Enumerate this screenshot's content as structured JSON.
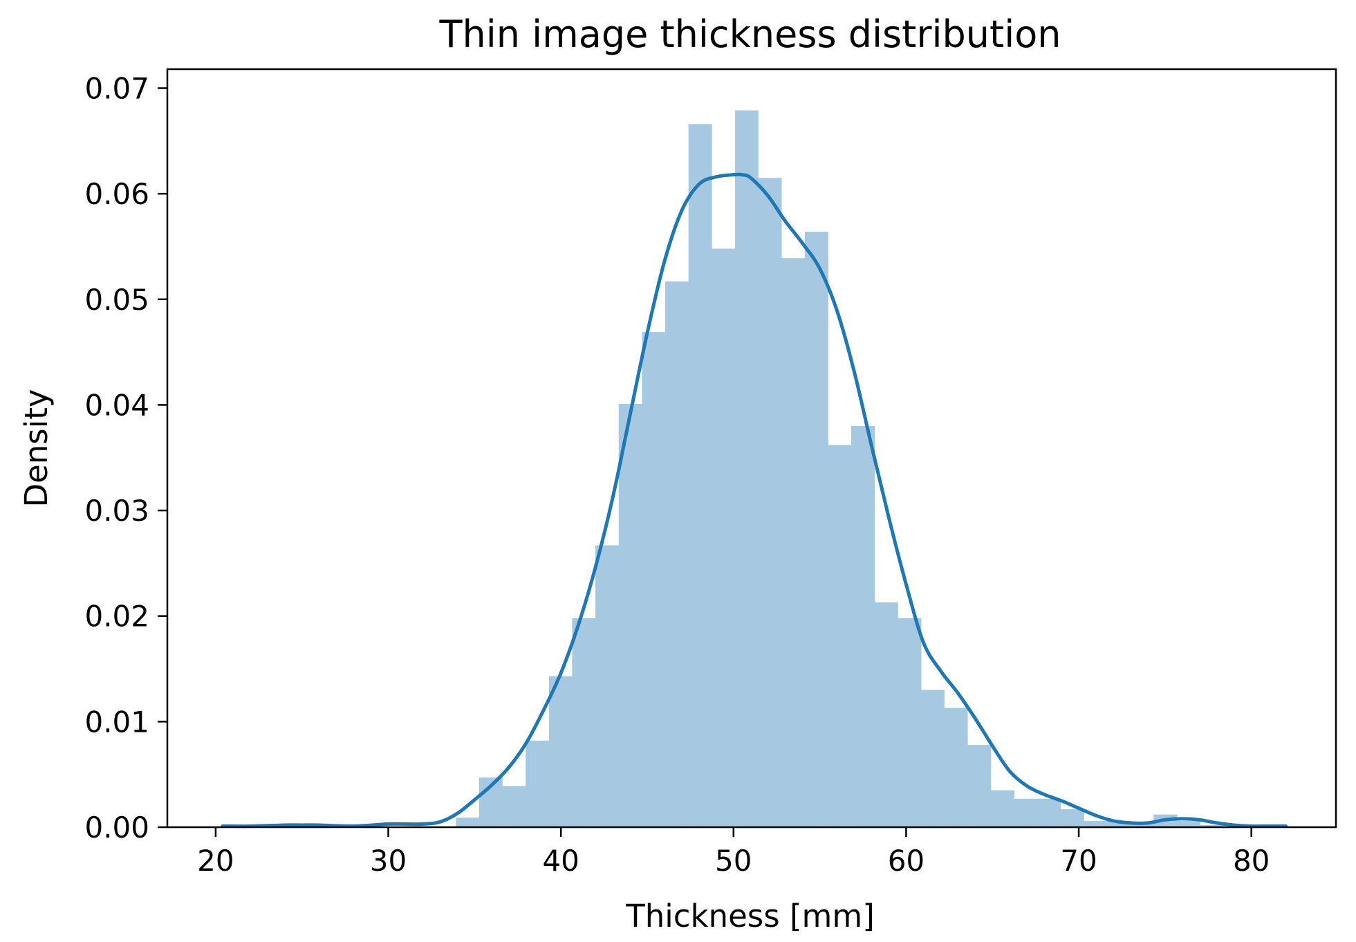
{
  "chart_data": {
    "type": "bar",
    "title": "Thin image thickness distribution",
    "xlabel": "Thickness [mm]",
    "ylabel": "Density",
    "xlim": [
      17.2,
      84.9
    ],
    "ylim": [
      0,
      0.0718
    ],
    "xticks": [
      20,
      30,
      40,
      50,
      60,
      70,
      80
    ],
    "xtick_labels": [
      "20",
      "30",
      "40",
      "50",
      "60",
      "70",
      "80"
    ],
    "yticks": [
      0.0,
      0.01,
      0.02,
      0.03,
      0.04,
      0.05,
      0.06,
      0.07
    ],
    "ytick_labels": [
      "0.00",
      "0.01",
      "0.02",
      "0.03",
      "0.04",
      "0.05",
      "0.06",
      "0.07"
    ],
    "grid": false,
    "legend": "none",
    "colors": {
      "histogram": "#a6c8e1",
      "kde": "#1f77b4"
    },
    "histogram": {
      "bin_edges": [
        20.44,
        21.79,
        23.14,
        24.48,
        25.83,
        27.18,
        28.53,
        29.87,
        31.22,
        32.57,
        33.92,
        35.26,
        36.61,
        37.96,
        39.31,
        40.65,
        42.0,
        43.35,
        44.7,
        46.04,
        47.39,
        48.74,
        50.09,
        51.43,
        52.78,
        54.13,
        55.48,
        56.82,
        58.17,
        59.52,
        60.87,
        62.21,
        63.56,
        64.91,
        66.26,
        67.6,
        68.95,
        70.3,
        71.65,
        72.99,
        74.34,
        75.69,
        77.04,
        78.38,
        79.73,
        81.08
      ],
      "values": [
        0.0002,
        0,
        0,
        0,
        0,
        0,
        0,
        0,
        0,
        0,
        0.0009,
        0.0047,
        0.0039,
        0.0082,
        0.0143,
        0.0198,
        0.0267,
        0.0401,
        0.0469,
        0.0517,
        0.0666,
        0.0548,
        0.0679,
        0.0615,
        0.0539,
        0.0564,
        0.0362,
        0.038,
        0.0213,
        0.0198,
        0.013,
        0.0113,
        0.0078,
        0.0035,
        0.0027,
        0.0027,
        0.0017,
        0.0006,
        0.0006,
        0.0003,
        0.0012,
        0.0006,
        0.0002,
        0,
        0.0002
      ]
    },
    "kde": {
      "x": [
        20.4,
        22,
        24,
        25,
        26,
        28,
        30,
        31,
        32,
        33,
        34,
        35,
        36,
        37,
        38,
        39,
        40,
        41,
        42,
        43,
        44,
        45,
        46,
        47,
        48,
        49,
        50,
        50.5,
        51,
        52,
        53,
        54,
        55,
        56,
        57,
        58,
        59,
        60,
        61,
        62,
        63,
        64,
        65,
        66,
        67,
        68,
        69,
        70,
        71,
        72,
        73,
        74,
        75,
        76,
        77,
        78,
        79,
        80,
        81,
        82
      ],
      "y": [
        0.0001,
        0.0001,
        0.0002,
        0.0002,
        0.0002,
        0.0001,
        0.0003,
        0.0003,
        0.0003,
        0.0005,
        0.0013,
        0.0026,
        0.004,
        0.0057,
        0.008,
        0.0111,
        0.0146,
        0.0191,
        0.0246,
        0.0312,
        0.039,
        0.0468,
        0.0536,
        0.0584,
        0.0609,
        0.0616,
        0.0618,
        0.0618,
        0.0615,
        0.0598,
        0.0574,
        0.0553,
        0.0529,
        0.0489,
        0.0431,
        0.0361,
        0.0293,
        0.023,
        0.0175,
        0.0148,
        0.0127,
        0.0103,
        0.0077,
        0.0053,
        0.0039,
        0.0031,
        0.0025,
        0.0018,
        0.0011,
        0.0006,
        0.0004,
        0.0004,
        0.0007,
        0.0008,
        0.0007,
        0.0004,
        0.0002,
        0.0001,
        0.0001,
        0.0001
      ]
    }
  }
}
